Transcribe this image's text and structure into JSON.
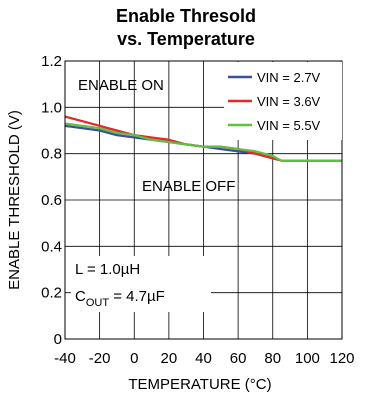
{
  "chart_data": {
    "type": "line",
    "title_line1": "Enable Thresold",
    "title_line2": "vs. Temperature",
    "xlabel": "TEMPERATURE (°C)",
    "ylabel": "ENABLE THRESHOLD (V)",
    "xlim": [
      -40,
      120
    ],
    "ylim": [
      0,
      1.2
    ],
    "xticks": [
      -40,
      -20,
      0,
      20,
      40,
      60,
      80,
      100,
      120
    ],
    "yticks": [
      0,
      0.2,
      0.4,
      0.6,
      0.8,
      1.0,
      1.2
    ],
    "ytick_labels": [
      "0",
      "0.2",
      "0.4",
      "0.6",
      "0.8",
      "1.0",
      "1.2"
    ],
    "grid": true,
    "legend_position": "top-right",
    "annotations": {
      "enable_on": "ENABLE ON",
      "enable_off": "ENABLE OFF",
      "inductor": "L = 1.0µH",
      "cap_main": "C",
      "cap_sub": "OUT",
      "cap_value": " = 4.7µF"
    },
    "series": [
      {
        "name": "VIN = 2.7V",
        "color": "#3a4f9e",
        "x": [
          -40,
          -30,
          -20,
          -10,
          0,
          10,
          20,
          30,
          40,
          50,
          60,
          70,
          80,
          85,
          90,
          100,
          110,
          120
        ],
        "y": [
          0.92,
          0.91,
          0.9,
          0.88,
          0.87,
          0.86,
          0.85,
          0.84,
          0.83,
          0.82,
          0.81,
          0.8,
          0.78,
          0.77,
          0.77,
          0.77,
          0.77,
          0.77
        ]
      },
      {
        "name": "VIN = 3.6V",
        "color": "#e8262a",
        "x": [
          -40,
          -30,
          -20,
          -10,
          0,
          10,
          20,
          30,
          40,
          50,
          60,
          70,
          80,
          85,
          90,
          100,
          110,
          120
        ],
        "y": [
          0.96,
          0.94,
          0.92,
          0.9,
          0.88,
          0.87,
          0.86,
          0.84,
          0.83,
          0.83,
          0.82,
          0.8,
          0.78,
          0.77,
          0.77,
          0.77,
          0.77,
          0.77
        ]
      },
      {
        "name": "VIN = 5.5V",
        "color": "#5fbf3e",
        "x": [
          -40,
          -30,
          -20,
          -10,
          0,
          10,
          20,
          30,
          40,
          50,
          60,
          70,
          80,
          85,
          90,
          100,
          110,
          120
        ],
        "y": [
          0.93,
          0.92,
          0.91,
          0.89,
          0.88,
          0.86,
          0.85,
          0.84,
          0.83,
          0.83,
          0.82,
          0.81,
          0.79,
          0.77,
          0.77,
          0.77,
          0.77,
          0.77
        ]
      }
    ]
  }
}
